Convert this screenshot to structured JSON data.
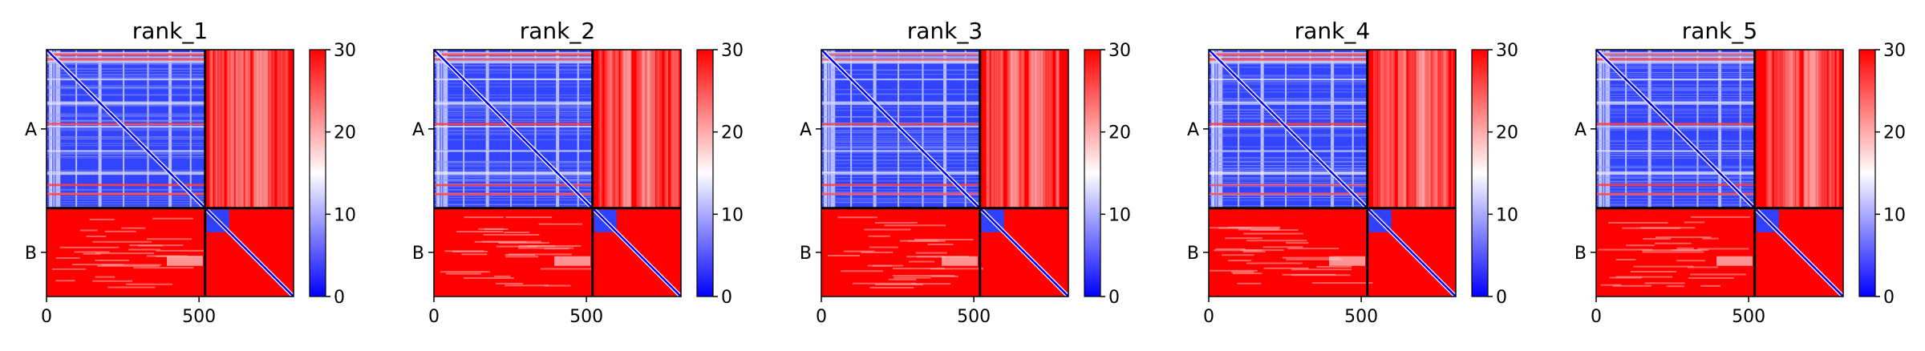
{
  "chart_data": [
    {
      "type": "heatmap",
      "title": "rank_1",
      "chains": [
        "A",
        "B"
      ],
      "chain_boundary": 520,
      "length": 810,
      "xticks": [
        0,
        500
      ],
      "xtick_labels": [
        "0",
        "500"
      ],
      "colorbar": {
        "min": 0,
        "max": 30,
        "ticks": [
          0,
          10,
          20,
          30
        ],
        "tick_labels": [
          "0",
          "10",
          "20",
          "30"
        ],
        "colormap": "bwr"
      }
    },
    {
      "type": "heatmap",
      "title": "rank_2",
      "chains": [
        "A",
        "B"
      ],
      "chain_boundary": 520,
      "length": 810,
      "xticks": [
        0,
        500
      ],
      "xtick_labels": [
        "0",
        "500"
      ],
      "colorbar": {
        "min": 0,
        "max": 30,
        "ticks": [
          0,
          10,
          20,
          30
        ],
        "tick_labels": [
          "0",
          "10",
          "20",
          "30"
        ],
        "colormap": "bwr"
      }
    },
    {
      "type": "heatmap",
      "title": "rank_3",
      "chains": [
        "A",
        "B"
      ],
      "chain_boundary": 520,
      "length": 810,
      "xticks": [
        0,
        500
      ],
      "xtick_labels": [
        "0",
        "500"
      ],
      "colorbar": {
        "min": 0,
        "max": 30,
        "ticks": [
          0,
          10,
          20,
          30
        ],
        "tick_labels": [
          "0",
          "10",
          "20",
          "30"
        ],
        "colormap": "bwr"
      }
    },
    {
      "type": "heatmap",
      "title": "rank_4",
      "chains": [
        "A",
        "B"
      ],
      "chain_boundary": 520,
      "length": 810,
      "xticks": [
        0,
        500
      ],
      "xtick_labels": [
        "0",
        "500"
      ],
      "colorbar": {
        "min": 0,
        "max": 30,
        "ticks": [
          0,
          10,
          20,
          30
        ],
        "tick_labels": [
          "0",
          "10",
          "20",
          "30"
        ],
        "colormap": "bwr"
      }
    },
    {
      "type": "heatmap",
      "title": "rank_5",
      "chains": [
        "A",
        "B"
      ],
      "chain_boundary": 520,
      "length": 810,
      "xticks": [
        0,
        500
      ],
      "xtick_labels": [
        "0",
        "500"
      ],
      "colorbar": {
        "min": 0,
        "max": 30,
        "ticks": [
          0,
          10,
          20,
          30
        ],
        "tick_labels": [
          "0",
          "10",
          "20",
          "30"
        ],
        "colormap": "bwr"
      }
    }
  ],
  "colors": {
    "low": "#0000ff",
    "mid": "#ffffff",
    "high": "#ff0000",
    "boundary": "#000000"
  }
}
